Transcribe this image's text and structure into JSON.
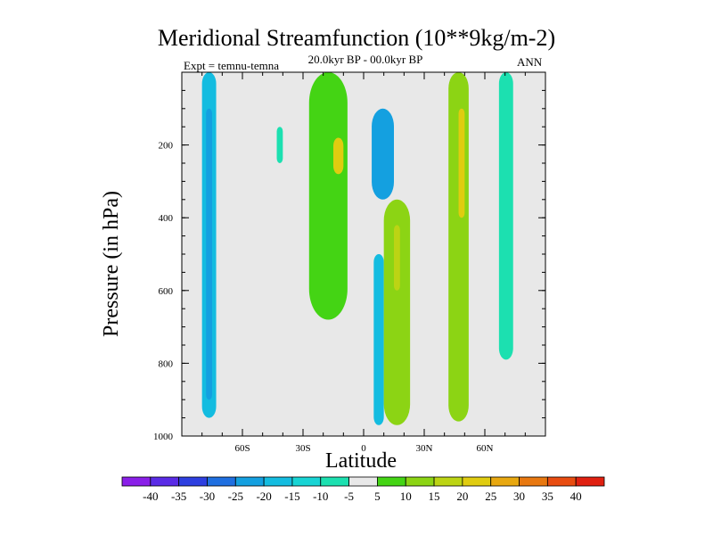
{
  "chart_data": {
    "type": "contour",
    "title": "Meridional Streamfunction (10**9kg/m-2)",
    "subtitle": "20.0kyr BP - 00.0kyr BP",
    "left_label": "Expt = temnu-temna",
    "right_label": "ANN",
    "xlabel": "Latitude",
    "ylabel": "Pressure (in hPa)",
    "xlim": [
      -90,
      90
    ],
    "ylim": [
      1000,
      0
    ],
    "x_ticks": [
      {
        "value": -60,
        "label": "60S"
      },
      {
        "value": -30,
        "label": "30S"
      },
      {
        "value": 0,
        "label": "0"
      },
      {
        "value": 30,
        "label": "30N"
      },
      {
        "value": 60,
        "label": "60N"
      }
    ],
    "y_ticks": [
      {
        "value": 200,
        "label": "200"
      },
      {
        "value": 400,
        "label": "400"
      },
      {
        "value": 600,
        "label": "600"
      },
      {
        "value": 800,
        "label": "800"
      },
      {
        "value": 1000,
        "label": "1000"
      }
    ],
    "colorbar": {
      "labels": [
        "-40",
        "-35",
        "-30",
        "-25",
        "-20",
        "-15",
        "-10",
        "-5",
        "5",
        "10",
        "15",
        "20",
        "25",
        "30",
        "35",
        "40"
      ],
      "colors": [
        "#8a1fe8",
        "#5a2be6",
        "#2e3fe0",
        "#1f6fe0",
        "#14a0e0",
        "#14bce0",
        "#18d4d4",
        "#1ce0b0",
        "#e8e8e8",
        "#44d414",
        "#8cd414",
        "#bcd414",
        "#e0cc10",
        "#e8a810",
        "#e87810",
        "#e84c10",
        "#e02010"
      ]
    },
    "contour_regions": [
      {
        "name": "region-sh-polar-blue",
        "level": -10,
        "color": "#14bce0",
        "lat": [
          -80,
          -73
        ],
        "p": [
          0,
          950
        ]
      },
      {
        "name": "region-sh-polar-core",
        "level": -15,
        "color": "#14a0e0",
        "lat": [
          -78,
          -75
        ],
        "p": [
          100,
          900
        ]
      },
      {
        "name": "region-sh-mid-cyan",
        "level": -5,
        "color": "#1ce0b0",
        "lat": [
          -43,
          -40
        ],
        "p": [
          150,
          250
        ]
      },
      {
        "name": "region-sh-subtropic-green",
        "level": 5,
        "color": "#44d414",
        "lat": [
          -27,
          -8
        ],
        "p": [
          0,
          680
        ]
      },
      {
        "name": "region-sh-subtropic-max",
        "level": 20,
        "color": "#e0cc10",
        "lat": [
          -15,
          -10
        ],
        "p": [
          180,
          280
        ]
      },
      {
        "name": "region-eq-blue",
        "level": -20,
        "color": "#14a0e0",
        "lat": [
          4,
          15
        ],
        "p": [
          100,
          350
        ]
      },
      {
        "name": "region-eq-lower-blue",
        "level": -10,
        "color": "#14bce0",
        "lat": [
          5,
          10
        ],
        "p": [
          500,
          970
        ]
      },
      {
        "name": "region-nh-tropic-green",
        "level": 10,
        "color": "#8cd414",
        "lat": [
          10,
          23
        ],
        "p": [
          350,
          970
        ]
      },
      {
        "name": "region-nh-tropic-core",
        "level": 15,
        "color": "#bcd414",
        "lat": [
          15,
          18
        ],
        "p": [
          420,
          600
        ]
      },
      {
        "name": "region-nh-mid-green",
        "level": 10,
        "color": "#8cd414",
        "lat": [
          42,
          52
        ],
        "p": [
          0,
          960
        ]
      },
      {
        "name": "region-nh-mid-core",
        "level": 20,
        "color": "#e0cc10",
        "lat": [
          47,
          50
        ],
        "p": [
          100,
          400
        ]
      },
      {
        "name": "region-nh-high-cyan",
        "level": -5,
        "color": "#1ce0b0",
        "lat": [
          67,
          74
        ],
        "p": [
          0,
          790
        ]
      }
    ]
  }
}
